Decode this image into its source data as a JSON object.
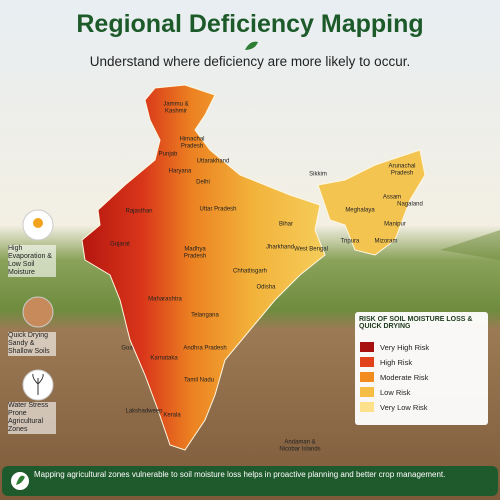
{
  "header": {
    "title": "Regional Deficiency Mapping",
    "subtitle": "Understand where deficiency are more likely to occur."
  },
  "map": {
    "regions": [
      "Jammu & Kashmir",
      "Himachal Pradesh",
      "Punjab",
      "Uttarakhand",
      "Haryana",
      "Delhi",
      "Rajasthan",
      "Uttar Pradesh",
      "Sikkim",
      "Arunachal Pradesh",
      "Assam",
      "Nagaland",
      "Meghalaya",
      "Manipur",
      "Tripura",
      "Mizoram",
      "Bihar",
      "Gujarat",
      "Madhya Pradesh",
      "Jharkhand",
      "West Bengal",
      "Chhattisgarh",
      "Odisha",
      "Maharashtra",
      "Telangana",
      "Goa",
      "Karnataka",
      "Andhra Pradesh",
      "Lakshadweep",
      "Kerala",
      "Tamil Nadu",
      "Andaman & Nicobar Islands"
    ]
  },
  "side": {
    "items": [
      "High Evaporation & Low Soil Moisture",
      "Quick Drying Sandy & Shallow Soils",
      "Water Stress Prone Agricultural Zones"
    ]
  },
  "legend": {
    "title": "RISK OF SOIL MOISTURE LOSS & QUICK DRYING",
    "items": [
      {
        "name": "Very High Risk",
        "color": "#a80f0f"
      },
      {
        "name": "High Risk",
        "color": "#e2421b"
      },
      {
        "name": "Moderate Risk",
        "color": "#f28c1f"
      },
      {
        "name": "Low Risk",
        "color": "#f6bd45"
      },
      {
        "name": "Very Low Risk",
        "color": "#fce08a"
      }
    ]
  },
  "footer": {
    "text": "Mapping agricultural zones vulnerable to soil moisture loss helps in proactive planning and better crop management."
  }
}
